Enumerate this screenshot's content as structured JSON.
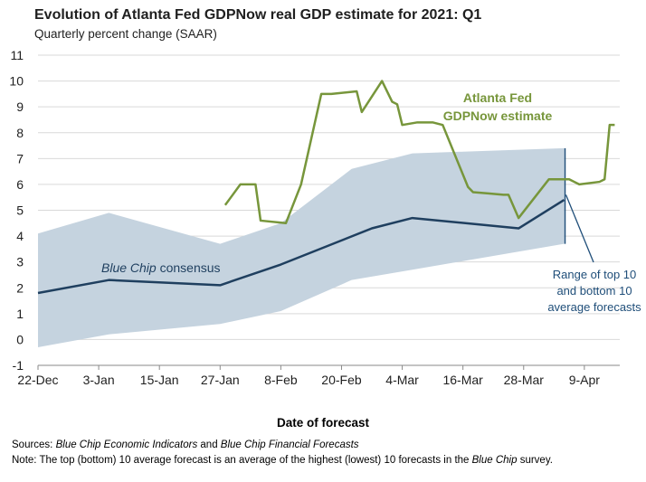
{
  "header": {
    "title": "Evolution of Atlanta Fed GDPNow real GDP estimate for 2021: Q1",
    "subtitle": "Quarterly percent change (SAAR)"
  },
  "footer": {
    "sources_label": "Sources:",
    "sources_part1": "Blue Chip Economic Indicators",
    "sources_and": " and ",
    "sources_part2": "Blue Chip Financial Forecasts",
    "note_label": "Note",
    "note_text_a": ": The top (bottom) 10 average forecast is an average of the highest (lowest) 10 forecasts in the ",
    "note_em": "Blue Chip",
    "note_text_b": " survey."
  },
  "chart_data": {
    "type": "line",
    "title": "Evolution of Atlanta Fed GDPNow real GDP estimate for 2021: Q1",
    "subtitle": "Quarterly percent change (SAAR)",
    "xlabel": "Date of forecast",
    "ylabel": "",
    "ylim": [
      -1,
      11
    ],
    "yticks": [
      "-1",
      "0",
      "1",
      "2",
      "3",
      "4",
      "5",
      "6",
      "7",
      "8",
      "9",
      "10",
      "11"
    ],
    "xlim": [
      0,
      115
    ],
    "xticks": [
      {
        "x": 0,
        "label": "22-Dec"
      },
      {
        "x": 12,
        "label": "3-Jan"
      },
      {
        "x": 24,
        "label": "15-Jan"
      },
      {
        "x": 36,
        "label": "27-Jan"
      },
      {
        "x": 48,
        "label": "8-Feb"
      },
      {
        "x": 60,
        "label": "20-Feb"
      },
      {
        "x": 72,
        "label": "4-Mar"
      },
      {
        "x": 84,
        "label": "16-Mar"
      },
      {
        "x": 96,
        "label": "28-Mar"
      },
      {
        "x": 108,
        "label": "9-Apr"
      }
    ],
    "grid": "horizontal",
    "colors": {
      "gdpnow": "#77963b",
      "blue_chip": "#1f3f5f",
      "range_band": "#c5d3df",
      "annotation": "#1f4e79",
      "grid": "#d9d9d9"
    },
    "series": [
      {
        "name": "Atlanta Fed GDPNow estimate",
        "points": [
          [
            37,
            5.2
          ],
          [
            40,
            6.0
          ],
          [
            43,
            6.0
          ],
          [
            44,
            4.6
          ],
          [
            49,
            4.5
          ],
          [
            52,
            6.0
          ],
          [
            56,
            9.5
          ],
          [
            58,
            9.5
          ],
          [
            63,
            9.6
          ],
          [
            64,
            8.8
          ],
          [
            68,
            10.0
          ],
          [
            70,
            9.2
          ],
          [
            71,
            9.1
          ],
          [
            72,
            8.3
          ],
          [
            75,
            8.4
          ],
          [
            78,
            8.4
          ],
          [
            80,
            8.3
          ],
          [
            85,
            5.9
          ],
          [
            86,
            5.7
          ],
          [
            89,
            5.65
          ],
          [
            92,
            5.6
          ],
          [
            93,
            5.6
          ],
          [
            95,
            4.7
          ],
          [
            101,
            6.2
          ],
          [
            104,
            6.2
          ],
          [
            105,
            6.2
          ],
          [
            107,
            6.0
          ],
          [
            111,
            6.1
          ],
          [
            112,
            6.2
          ],
          [
            113,
            8.3
          ],
          [
            114,
            8.3
          ]
        ]
      },
      {
        "name": "Blue Chip consensus",
        "points": [
          [
            0,
            1.8
          ],
          [
            14,
            2.3
          ],
          [
            36,
            2.1
          ],
          [
            48,
            2.9
          ],
          [
            66,
            4.3
          ],
          [
            74,
            4.7
          ],
          [
            95,
            4.3
          ],
          [
            104,
            5.4
          ]
        ]
      }
    ],
    "range_band": {
      "name": "Range of top 10 and bottom 10 average forecasts",
      "upper": [
        [
          0,
          4.1
        ],
        [
          14,
          4.9
        ],
        [
          36,
          3.7
        ],
        [
          48,
          4.5
        ],
        [
          62,
          6.6
        ],
        [
          74,
          7.2
        ],
        [
          104,
          7.4
        ]
      ],
      "lower": [
        [
          0,
          -0.3
        ],
        [
          14,
          0.2
        ],
        [
          36,
          0.6
        ],
        [
          48,
          1.1
        ],
        [
          62,
          2.3
        ],
        [
          74,
          2.7
        ],
        [
          104,
          3.7
        ]
      ]
    },
    "annotations": [
      {
        "text_lines": [
          "Atlanta Fed",
          "GDPNow estimate"
        ],
        "color": "#77963b"
      },
      {
        "text": "Blue Chip consensus",
        "italic_part": "Blue Chip",
        "plain_part": " consensus",
        "color": "#1f3f5f"
      },
      {
        "text_lines": [
          "Range of top 10",
          "and bottom 10",
          "average forecasts"
        ],
        "color": "#1f4e79"
      }
    ]
  }
}
